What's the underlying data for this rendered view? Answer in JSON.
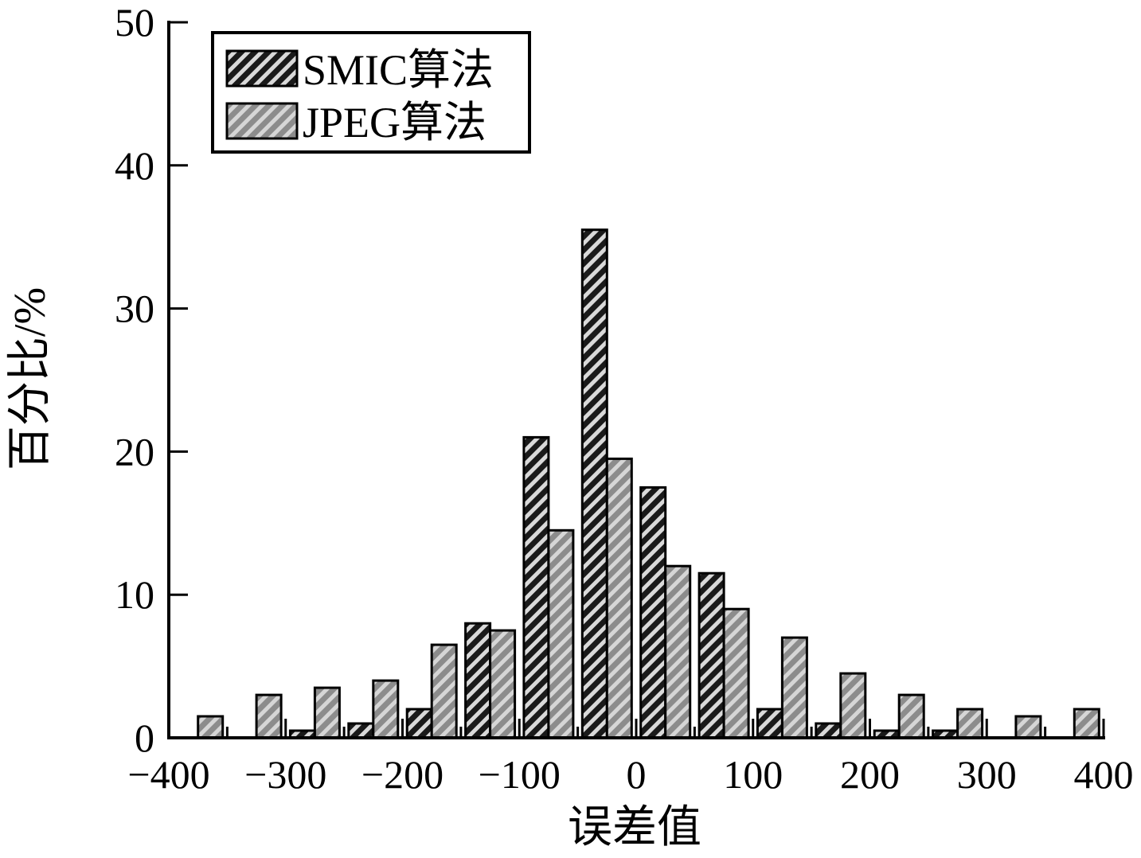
{
  "chart_data": {
    "type": "bar",
    "title": "",
    "xlabel": "误差值",
    "ylabel": "百分比/%",
    "xlim": [
      -400,
      400
    ],
    "ylim": [
      0,
      50
    ],
    "x_ticks": [
      -400,
      -300,
      -200,
      -100,
      0,
      100,
      200,
      300,
      400
    ],
    "x_tick_labels": [
      "−400",
      "−300",
      "−200",
      "−100",
      "0",
      "100",
      "200",
      "300",
      "400"
    ],
    "y_ticks": [
      0,
      10,
      20,
      30,
      40,
      50
    ],
    "y_tick_labels": [
      "0",
      "10",
      "20",
      "30",
      "40",
      "50"
    ],
    "grid": false,
    "legend_position": "top-left",
    "bin_centers": [
      -375,
      -325,
      -275,
      -225,
      -175,
      -125,
      -75,
      -25,
      25,
      75,
      125,
      175,
      225,
      275,
      325,
      375
    ],
    "series": [
      {
        "name": "SMIC算法",
        "pattern": "dark-hatch",
        "fill_color": "#2b2b2b",
        "values": [
          0,
          0,
          0.5,
          1,
          2,
          8,
          21,
          35.5,
          17.5,
          11.5,
          2,
          1,
          0.5,
          0.5,
          0,
          0
        ]
      },
      {
        "name": "JPEG算法",
        "pattern": "light-hatch",
        "fill_color": "#a6a6a6",
        "values": [
          1.5,
          3,
          3.5,
          4,
          6.5,
          7.5,
          14.5,
          19.5,
          12,
          9,
          7,
          4.5,
          3,
          2,
          1.5,
          2
        ]
      }
    ]
  }
}
